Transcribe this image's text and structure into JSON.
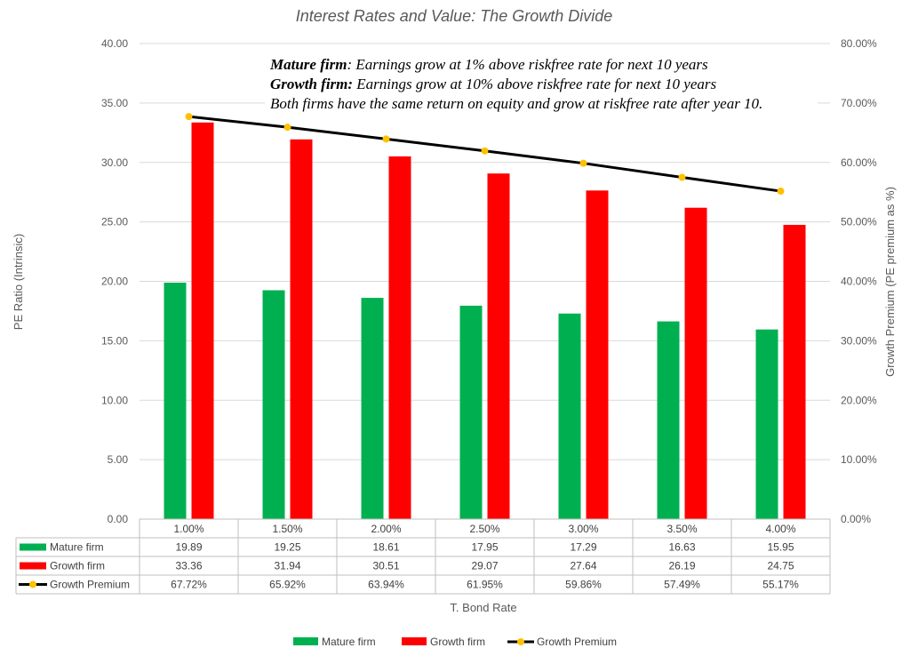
{
  "chart_data": {
    "type": "bar",
    "title": "Interest Rates and Value: The Growth Divide",
    "xlabel": "T. Bond Rate",
    "ylabel": "PE Ratio (Intrinsic)",
    "ylabel2": "Growth Premium (PE premium as %)",
    "ylim": [
      0,
      40
    ],
    "y2lim": [
      0,
      0.8
    ],
    "yticks": [
      "0.00",
      "5.00",
      "10.00",
      "15.00",
      "20.00",
      "25.00",
      "30.00",
      "35.00",
      "40.00"
    ],
    "y2ticks": [
      "0.00%",
      "10.00%",
      "20.00%",
      "30.00%",
      "40.00%",
      "50.00%",
      "60.00%",
      "70.00%",
      "80.00%"
    ],
    "categories": [
      "1.00%",
      "1.50%",
      "2.00%",
      "2.50%",
      "3.00%",
      "3.50%",
      "4.00%"
    ],
    "series": [
      {
        "name": "Mature firm",
        "kind": "bar",
        "axis": "left",
        "color": "#00b050",
        "values": [
          19.89,
          19.25,
          18.61,
          17.95,
          17.29,
          16.63,
          15.95
        ],
        "labels": [
          "19.89",
          "19.25",
          "18.61",
          "17.95",
          "17.29",
          "16.63",
          "15.95"
        ]
      },
      {
        "name": "Growth firm",
        "kind": "bar",
        "axis": "left",
        "color": "#ff0000",
        "values": [
          33.36,
          31.94,
          30.51,
          29.07,
          27.64,
          26.19,
          24.75
        ],
        "labels": [
          "33.36",
          "31.94",
          "30.51",
          "29.07",
          "27.64",
          "26.19",
          "24.75"
        ]
      },
      {
        "name": "Growth Premium",
        "kind": "line",
        "axis": "right",
        "color": "#000000",
        "marker_color": "#ffc000",
        "values": [
          0.6772,
          0.6592,
          0.6394,
          0.6195,
          0.5986,
          0.5749,
          0.5517
        ],
        "labels": [
          "67.72%",
          "65.92%",
          "63.94%",
          "61.95%",
          "59.86%",
          "57.49%",
          "55.17%"
        ]
      }
    ],
    "annotation": [
      [
        {
          "text": "Mature firm",
          "style": "bold-italic"
        },
        {
          "text": ": Earnings grow at 1% above riskfree rate for next 10 years",
          "style": "italic"
        }
      ],
      [
        {
          "text": "Growth firm:",
          "style": "bold-italic"
        },
        {
          "text": " Earnings grow at 10% above riskfree rate for next 10 years",
          "style": "italic"
        }
      ],
      [
        {
          "text": "Both firms have the same return on equity and grow at riskfree rate after year 10.",
          "style": "italic"
        }
      ]
    ],
    "grid": true,
    "data_table": true,
    "legend_position": "bottom"
  }
}
